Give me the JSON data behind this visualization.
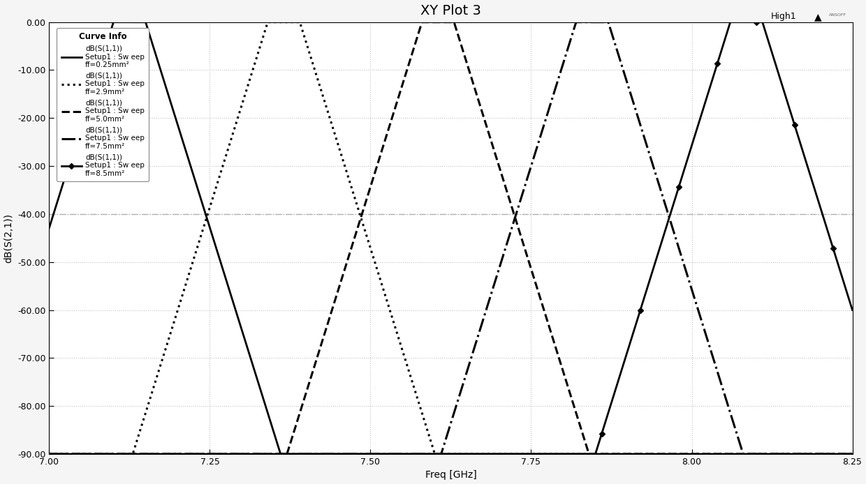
{
  "title": "XY Plot 3",
  "xlabel": "Freq [GHz]",
  "ylabel": "dB(S(2,1))",
  "xlim": [
    7.0,
    8.25
  ],
  "ylim": [
    -90,
    0
  ],
  "xticks": [
    7.0,
    7.25,
    7.5,
    7.75,
    8.0,
    8.25
  ],
  "yticks": [
    0,
    -10,
    -20,
    -30,
    -40,
    -50,
    -60,
    -70,
    -80,
    -90
  ],
  "hline_y": -40,
  "hline_color": "#b0b0b0",
  "background_color": "#f5f5f5",
  "plot_bg_color": "#ffffff",
  "grid_color": "#c0c0c0",
  "floor_db": -90,
  "curves": [
    {
      "fc": 7.125,
      "half_flat": 0.025,
      "half_slope": 0.21,
      "style": "solid",
      "lw": 2.0,
      "has_markers": false
    },
    {
      "fc": 7.365,
      "half_flat": 0.025,
      "half_slope": 0.21,
      "style": "dotted",
      "lw": 2.0,
      "has_markers": false
    },
    {
      "fc": 7.605,
      "half_flat": 0.025,
      "half_slope": 0.21,
      "style": "dashed",
      "lw": 2.0,
      "has_markers": false
    },
    {
      "fc": 7.845,
      "half_flat": 0.025,
      "half_slope": 0.21,
      "style": "dashdot",
      "lw": 2.0,
      "has_markers": false
    },
    {
      "fc": 8.085,
      "half_flat": 0.025,
      "half_slope": 0.21,
      "style": "solid_marker",
      "lw": 2.0,
      "has_markers": true
    }
  ],
  "legend_title": "Curve Info",
  "legend_entries": [
    {
      "l1": "dB(S(1,1))",
      "l2": "Setup1 : Sw eep",
      "l3": "ff=0.25mm²",
      "style": "solid"
    },
    {
      "l1": "dB(S(1,1))",
      "l2": "Setup1 : Sw eep",
      "l3": "ff=2.9mm²",
      "style": "dotted"
    },
    {
      "l1": "dB(S(1,1))",
      "l2": "Setup1 : Sw eep",
      "l3": "ff=5.0mm²",
      "style": "dashed"
    },
    {
      "l1": "dB(S(1,1))",
      "l2": "Setup1 : Sw eep",
      "l3": "ff=7.5mm²",
      "style": "dashdot"
    },
    {
      "l1": "dB(S(1,1))",
      "l2": "Setup1 : Sw eep",
      "l3": "ff=8.5mm²",
      "style": "solid_marker"
    }
  ],
  "title_fontsize": 14,
  "axis_label_fontsize": 10,
  "tick_fontsize": 9,
  "legend_fontsize": 7.5,
  "legend_title_fontsize": 8.5
}
